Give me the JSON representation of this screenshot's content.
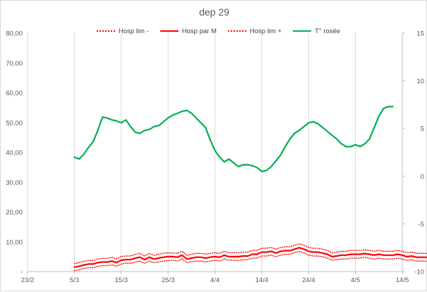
{
  "chart_data": {
    "type": "line",
    "title": "dep  29",
    "x_ticks": [
      "23/2",
      "5/3",
      "15/3",
      "25/3",
      "4/4",
      "14/4",
      "24/4",
      "4/5",
      "14/5"
    ],
    "y_left": {
      "ticks": [
        "-",
        "10,00",
        "20,00",
        "30,00",
        "40,00",
        "50,00",
        "60,00",
        "70,00",
        "80,00"
      ],
      "ylim": [
        0,
        80
      ]
    },
    "y_right": {
      "ticks": [
        "-10",
        "-5",
        "0",
        "5",
        "10",
        "15"
      ],
      "ylim": [
        -10,
        15
      ]
    },
    "x_start": "5/3",
    "grid": "vertical",
    "legend_position": "top",
    "series": [
      {
        "name": "Hosp lim -",
        "axis": "left",
        "color": "#ff0000",
        "style": "dotted",
        "values": [
          0.3,
          0.6,
          1.0,
          1.3,
          1.3,
          1.8,
          2.0,
          2.0,
          2.2,
          1.8,
          2.5,
          2.8,
          2.8,
          3.2,
          3.5,
          2.8,
          3.5,
          3.0,
          3.2,
          3.5,
          3.7,
          3.8,
          3.5,
          4.3,
          3.0,
          3.3,
          3.5,
          3.5,
          3.2,
          3.5,
          3.8,
          3.5,
          4.2,
          3.8,
          3.8,
          3.7,
          4.0,
          4.0,
          4.5,
          4.5,
          5.2,
          5.2,
          5.5,
          5.0,
          5.5,
          5.8,
          5.8,
          6.3,
          6.8,
          6.3,
          5.5,
          5.2,
          5.2,
          5.0,
          4.5,
          3.8,
          4.0,
          4.2,
          4.2,
          4.5,
          4.5,
          4.5,
          4.8,
          4.5,
          4.2,
          4.5,
          4.2,
          4.2,
          4.2,
          4.5,
          4.2,
          3.7,
          4.0,
          3.5,
          3.5,
          3.5,
          3.2
        ]
      },
      {
        "name": "Hosp par M",
        "axis": "left",
        "color": "#ff0000",
        "style": "solid",
        "values": [
          1.5,
          1.8,
          2.2,
          2.5,
          2.5,
          3.0,
          3.2,
          3.2,
          3.5,
          3.0,
          3.8,
          4.0,
          4.0,
          4.5,
          4.8,
          4.0,
          4.8,
          4.2,
          4.5,
          4.8,
          5.0,
          5.0,
          4.8,
          5.5,
          4.2,
          4.5,
          4.8,
          4.8,
          4.5,
          4.8,
          5.0,
          4.8,
          5.5,
          5.0,
          5.0,
          5.0,
          5.2,
          5.2,
          5.8,
          5.8,
          6.5,
          6.5,
          6.8,
          6.2,
          6.8,
          7.0,
          7.0,
          7.5,
          8.0,
          7.5,
          6.8,
          6.5,
          6.5,
          6.2,
          5.8,
          5.0,
          5.2,
          5.5,
          5.5,
          5.8,
          5.8,
          5.8,
          6.0,
          5.8,
          5.5,
          5.8,
          5.5,
          5.5,
          5.5,
          5.8,
          5.5,
          5.0,
          5.2,
          4.8,
          4.8,
          4.8,
          4.5
        ]
      },
      {
        "name": "Hosp lim +",
        "axis": "left",
        "color": "#ff0000",
        "style": "dotted",
        "values": [
          2.6,
          3.0,
          3.4,
          3.7,
          3.7,
          4.2,
          4.4,
          4.4,
          4.8,
          4.2,
          5.1,
          5.2,
          5.2,
          5.8,
          6.1,
          5.2,
          6.1,
          5.4,
          5.8,
          6.1,
          6.3,
          6.2,
          6.1,
          6.8,
          5.4,
          5.8,
          6.1,
          6.1,
          5.8,
          6.1,
          6.3,
          6.1,
          6.8,
          6.3,
          6.3,
          6.3,
          6.5,
          6.5,
          7.1,
          7.1,
          7.8,
          7.8,
          8.1,
          7.5,
          8.1,
          8.3,
          8.3,
          8.8,
          9.3,
          8.8,
          8.1,
          7.8,
          7.8,
          7.5,
          7.1,
          6.2,
          6.5,
          6.8,
          6.8,
          7.1,
          7.1,
          7.1,
          7.3,
          7.1,
          6.8,
          7.1,
          6.8,
          6.8,
          6.8,
          7.1,
          6.8,
          6.3,
          6.5,
          6.1,
          6.1,
          6.1,
          5.8
        ]
      },
      {
        "name": "T° rosée",
        "axis": "right",
        "color": "#00b050",
        "style": "solid",
        "values": [
          2.0,
          1.8,
          2.3,
          3.0,
          3.6,
          4.8,
          6.2,
          6.1,
          5.9,
          5.8,
          5.6,
          5.9,
          5.2,
          4.6,
          4.5,
          4.8,
          4.9,
          5.2,
          5.3,
          5.7,
          6.1,
          6.4,
          6.6,
          6.8,
          6.9,
          6.6,
          6.1,
          5.6,
          5.1,
          3.8,
          2.7,
          2.0,
          1.5,
          1.8,
          1.4,
          1.0,
          1.2,
          1.2,
          1.1,
          0.9,
          0.5,
          0.6,
          1.0,
          1.6,
          2.2,
          3.1,
          3.9,
          4.5,
          4.8,
          5.2,
          5.6,
          5.7,
          5.5,
          5.1,
          4.7,
          4.3,
          3.9,
          3.4,
          3.1,
          3.1,
          3.3,
          3.1,
          3.4,
          3.9,
          5.1,
          6.3,
          7.1,
          7.3,
          7.3
        ]
      }
    ]
  }
}
